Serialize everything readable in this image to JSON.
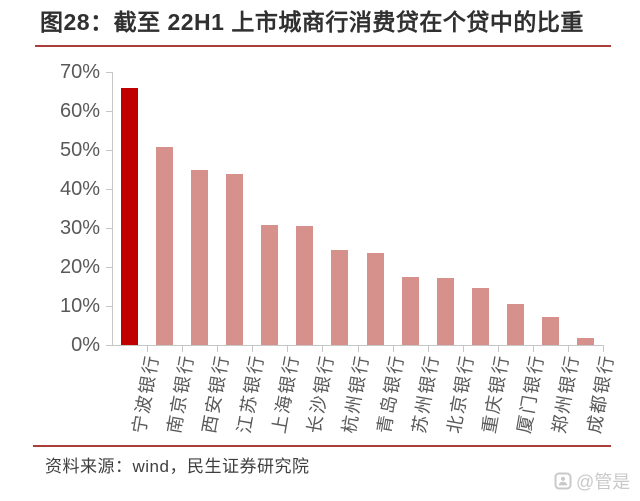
{
  "header": {
    "figure_label": "图28",
    "title": "图28：截至 22H1 上市城商行消费贷在个贷中的比重"
  },
  "chart_data": {
    "type": "bar",
    "title": "图28：截至 22H1 上市城商行消费贷在个贷中的比重",
    "categories": [
      "宁波银行",
      "南京银行",
      "西安银行",
      "江苏银行",
      "上海银行",
      "长沙银行",
      "杭州银行",
      "青岛银行",
      "苏州银行",
      "北京银行",
      "重庆银行",
      "厦门银行",
      "郑州银行",
      "成都银行"
    ],
    "values": [
      66.0,
      50.7,
      44.9,
      43.9,
      30.8,
      30.5,
      24.4,
      23.7,
      17.5,
      17.1,
      14.6,
      10.5,
      7.2,
      1.8
    ],
    "unit": "%",
    "xlabel": "",
    "ylabel": "",
    "ylim": [
      0,
      70
    ],
    "y_tick_labels": [
      "0%",
      "10%",
      "20%",
      "30%",
      "40%",
      "50%",
      "60%",
      "70%"
    ],
    "grid": false,
    "legend": null,
    "x_label_rotation_deg": -80,
    "highlight_index": 0,
    "highlight_color": "#c00000",
    "bar_color": "#d6918d",
    "axis_color": "#c6c6c6",
    "tick_label_color": "#595959"
  },
  "footer": {
    "source": "资料来源：wind，民生证券研究院",
    "watermark": "@管是"
  },
  "theme": {
    "accent_red": "#a93e3a",
    "title_color": "#303030",
    "source_color": "#3f3f3f",
    "watermark_color": "#c9c9c9",
    "background": "#ffffff"
  }
}
